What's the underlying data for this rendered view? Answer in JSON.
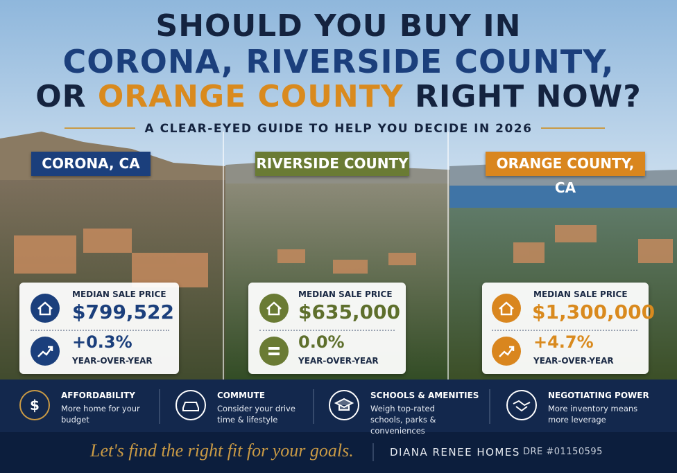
{
  "header": {
    "title": {
      "line1": "SHOULD YOU BUY IN",
      "line2": "CORONA, RIVERSIDE COUNTY,",
      "line3_pre": "OR",
      "line3_highlight": "ORANGE COUNTY",
      "line3_post": "RIGHT NOW?"
    },
    "subtitle": "A CLEAR-EYED GUIDE TO HELP YOU DECIDE IN 2026"
  },
  "panels": [
    {
      "label": "CORONA, CA",
      "price_label": "MEDIAN SALE PRICE",
      "price": "$799,522",
      "change": "+0.3%",
      "change_label": "YEAR-OVER-YEAR"
    },
    {
      "label": "RIVERSIDE COUNTY",
      "price_label": "MEDIAN SALE PRICE",
      "price": "$635,000",
      "change": "0.0%",
      "change_label": "YEAR-OVER-YEAR"
    },
    {
      "label": "ORANGE COUNTY, CA",
      "price_label": "MEDIAN SALE PRICE",
      "price": "$1,300,000",
      "change": "+4.7%",
      "change_label": "YEAR-OVER-YEAR"
    }
  ],
  "factors": [
    {
      "title": "AFFORDABILITY",
      "text": "More home for your budget"
    },
    {
      "title": "COMMUTE",
      "text": "Consider your drive time & lifestyle"
    },
    {
      "title": "SCHOOLS & AMENITIES",
      "text": "Weigh top-rated schools, parks & conveniences"
    },
    {
      "title": "NEGOTIATING POWER",
      "text": "More inventory means more leverage"
    }
  ],
  "footer": {
    "tagline": "Let's find the right fit for your goals.",
    "brand": "DIANA RENEE HOMES",
    "license": "DRE #01150595"
  }
}
